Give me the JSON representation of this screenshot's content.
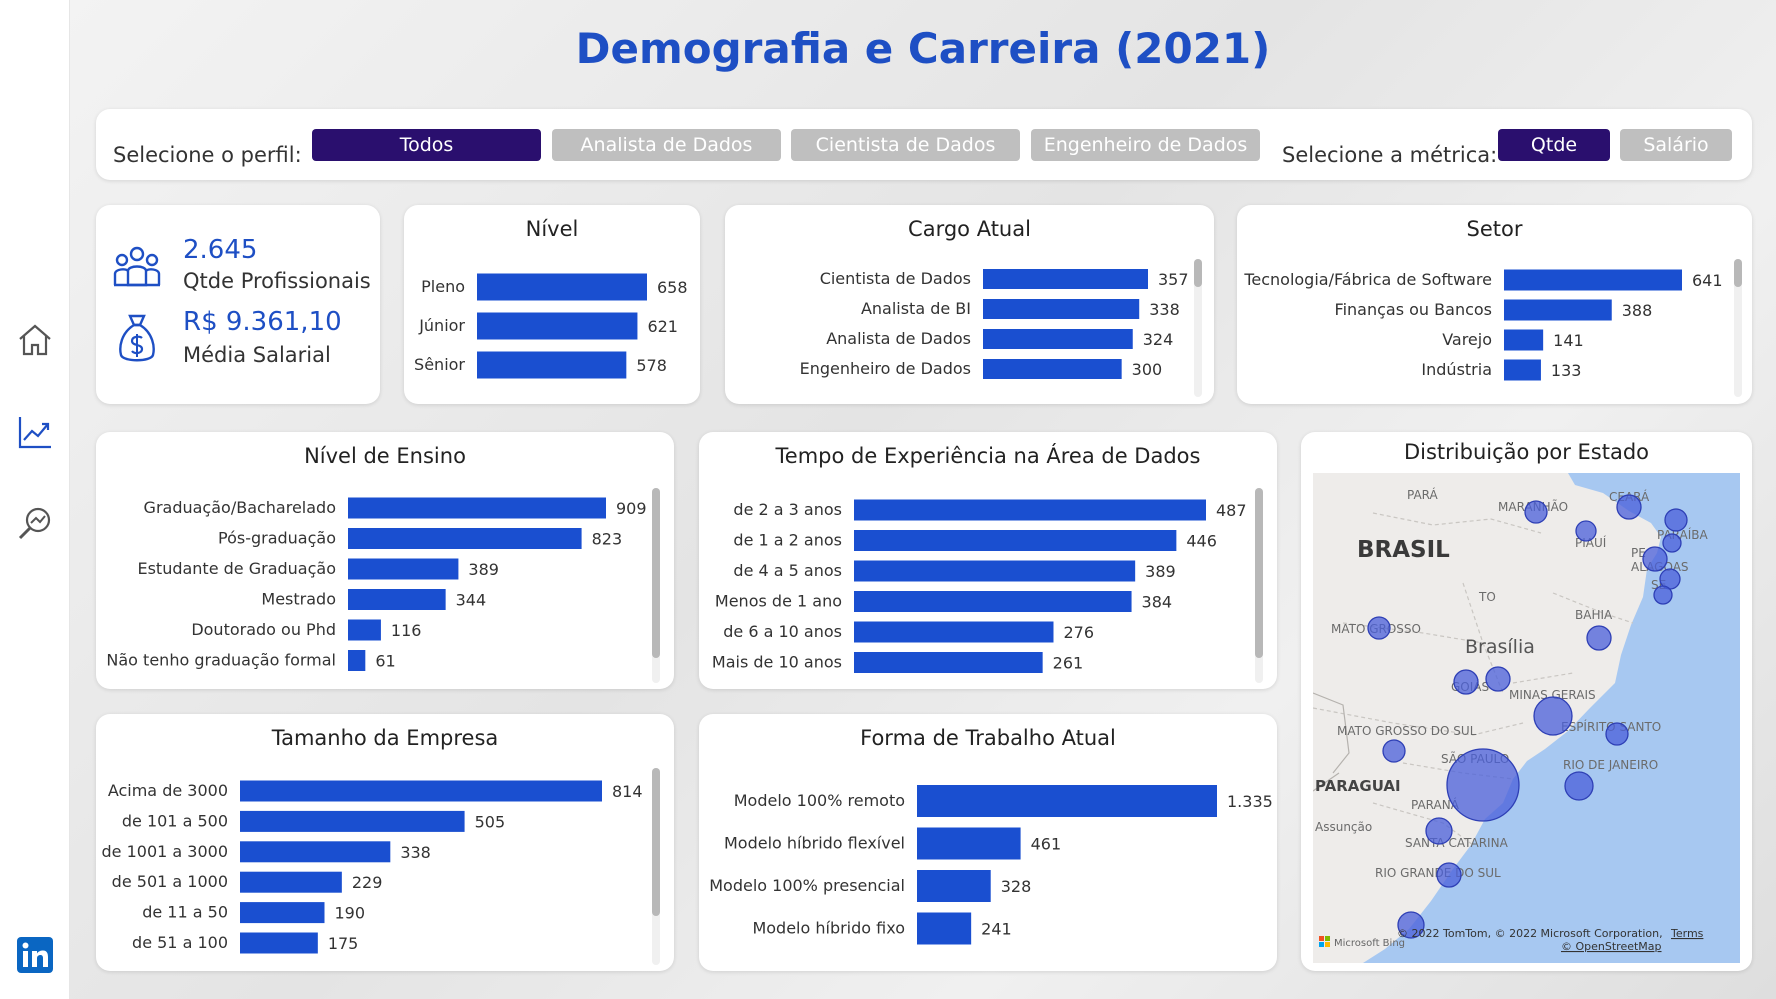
{
  "title": "Demografia e Carreira (2021)",
  "filters": {
    "profile_label": "Selecione o perfil:",
    "profiles": [
      "Todos",
      "Analista de Dados",
      "Cientista de Dados",
      "Engenheiro de Dados"
    ],
    "metric_label": "Selecione a métrica:",
    "metrics": [
      "Qtde",
      "Salário"
    ],
    "active_profile": "Todos",
    "active_metric": "Qtde"
  },
  "kpis": {
    "count_value": "2.645",
    "count_label": "Qtde Profissionais",
    "salary_value": "R$ 9.361,10",
    "salary_label": "Média Salarial"
  },
  "icons": {
    "nav": [
      "home-icon",
      "trend-chart-icon",
      "analytics-search-icon",
      "linkedin-icon"
    ],
    "kpi": [
      "people-group-icon",
      "money-bag-icon"
    ]
  },
  "colors": {
    "bar": "#1a4fd0",
    "title": "#1e4fc4",
    "active_button": "#2a0f6e",
    "inactive_button": "#bfbfbf"
  },
  "chart_data": [
    {
      "id": "nivel",
      "type": "bar",
      "orientation": "horizontal",
      "title": "Nível",
      "categories": [
        "Pleno",
        "Júnior",
        "Sênior"
      ],
      "values": [
        658,
        621,
        578
      ],
      "labels": [
        "658",
        "621",
        "578"
      ]
    },
    {
      "id": "cargo",
      "type": "bar",
      "orientation": "horizontal",
      "title": "Cargo Atual",
      "categories": [
        "Cientista de Dados",
        "Analista de BI",
        "Analista de Dados",
        "Engenheiro de Dados"
      ],
      "values": [
        357,
        338,
        324,
        300
      ],
      "labels": [
        "357",
        "338",
        "324",
        "300"
      ]
    },
    {
      "id": "setor",
      "type": "bar",
      "orientation": "horizontal",
      "title": "Setor",
      "categories": [
        "Tecnologia/Fábrica de Software",
        "Finanças ou Bancos",
        "Varejo",
        "Indústria"
      ],
      "values": [
        641,
        388,
        141,
        133
      ],
      "labels": [
        "641",
        "388",
        "141",
        "133"
      ]
    },
    {
      "id": "ensino",
      "type": "bar",
      "orientation": "horizontal",
      "title": "Nível de Ensino",
      "categories": [
        "Graduação/Bacharelado",
        "Pós-graduação",
        "Estudante de Graduação",
        "Mestrado",
        "Doutorado ou Phd",
        "Não tenho graduação formal"
      ],
      "values": [
        909,
        823,
        389,
        344,
        116,
        61
      ],
      "labels": [
        "909",
        "823",
        "389",
        "344",
        "116",
        "61"
      ]
    },
    {
      "id": "experiencia",
      "type": "bar",
      "orientation": "horizontal",
      "title": "Tempo de Experiência na Área de Dados",
      "categories": [
        "de 2 a 3 anos",
        "de 1 a 2 anos",
        "de 4 a 5 anos",
        "Menos de 1 ano",
        "de 6 a 10 anos",
        "Mais de 10 anos"
      ],
      "values": [
        487,
        446,
        389,
        384,
        276,
        261
      ],
      "labels": [
        "487",
        "446",
        "389",
        "384",
        "276",
        "261"
      ]
    },
    {
      "id": "empresa",
      "type": "bar",
      "orientation": "horizontal",
      "title": "Tamanho da Empresa",
      "categories": [
        "Acima de 3000",
        "de 101 a 500",
        "de 1001 a 3000",
        "de 501 a 1000",
        "de 11 a 50",
        "de 51 a 100"
      ],
      "values": [
        814,
        505,
        338,
        229,
        190,
        175
      ],
      "labels": [
        "814",
        "505",
        "338",
        "229",
        "190",
        "175"
      ]
    },
    {
      "id": "trabalho",
      "type": "bar",
      "orientation": "horizontal",
      "title": "Forma de Trabalho Atual",
      "categories": [
        "Modelo 100% remoto",
        "Modelo híbrido flexível",
        "Modelo 100% presencial",
        "Modelo híbrido fixo"
      ],
      "values": [
        1335,
        461,
        328,
        241
      ],
      "labels": [
        "1.335",
        "461",
        "328",
        "241"
      ]
    }
  ],
  "map": {
    "title": "Distribuição por Estado",
    "country_label": "BRASIL",
    "capital_label": "Brasília",
    "place_labels": [
      "PARÁ",
      "MARANHÃO",
      "CEARÁ",
      "PIAUÍ",
      "PARAÍBA",
      "PE",
      "ALAGOAS",
      "SE",
      "TO",
      "BAHIA",
      "MATO GROSSO",
      "GOIÁS",
      "MINAS GERAIS",
      "ESPÍRITO SANTO",
      "MATO GROSSO DO SUL",
      "SÃO PAULO",
      "RIO DE JANEIRO",
      "PARAGUAI",
      "Assunção",
      "PARANÁ",
      "SANTA CATARINA",
      "RIO GRANDE DO SUL"
    ],
    "attribution": "© 2022 TomTom, © 2022 Microsoft Corporation,",
    "terms": "Terms",
    "osm": "© OpenStreetMap",
    "bing": "Microsoft Bing"
  }
}
